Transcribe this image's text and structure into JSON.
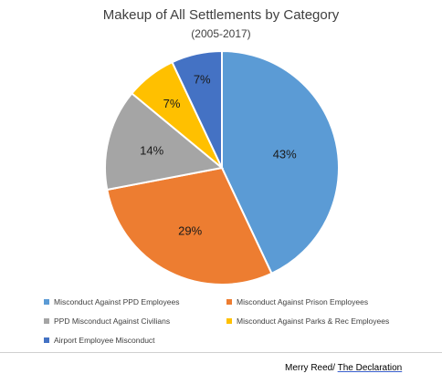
{
  "chart_data": {
    "type": "pie",
    "title": "Makeup of All Settlements by Category",
    "subtitle": "(2005-2017)",
    "slices": [
      {
        "name": "Misconduct Against PPD Employees",
        "value": 43,
        "label": "43%",
        "color": "#5b9bd5"
      },
      {
        "name": "Misconduct Against Prison Employees",
        "value": 29,
        "label": "29%",
        "color": "#ed7d31"
      },
      {
        "name": "PPD Misconduct Against Civilians",
        "value": 14,
        "label": "14%",
        "color": "#a5a5a5"
      },
      {
        "name": "Misconduct Against Parks & Rec Employees",
        "value": 7,
        "label": "7%",
        "color": "#ffc000"
      },
      {
        "name": "Airport Employee Misconduct",
        "value": 7,
        "label": "7%",
        "color": "#4472c4"
      }
    ],
    "legend_position": "bottom"
  },
  "credit": {
    "author": "Merry Reed/ ",
    "outlet": "The Declaration"
  }
}
